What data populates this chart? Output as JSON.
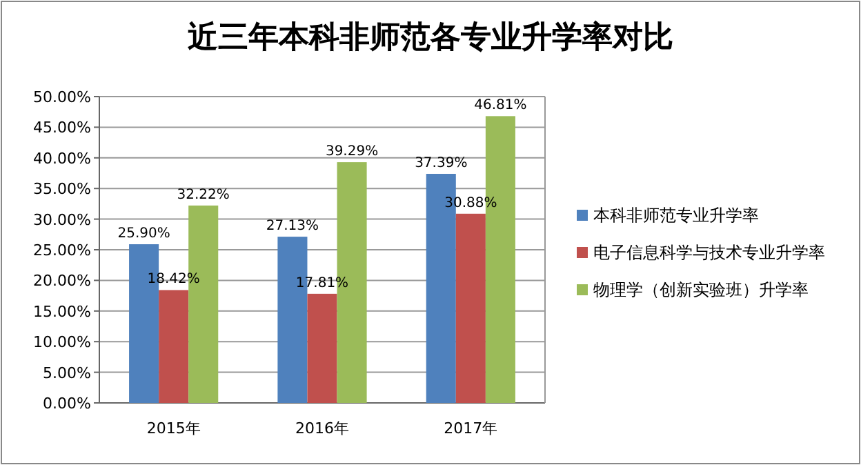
{
  "chart_data": {
    "type": "bar",
    "title": "近三年本科非师范各专业升学率对比",
    "categories": [
      "2015年",
      "2016年",
      "2017年"
    ],
    "series": [
      {
        "name": "本科非师范专业升学率",
        "color": "#4f81bd",
        "values": [
          25.9,
          27.13,
          37.39
        ],
        "value_labels": [
          "25.90%",
          "27.13%",
          "37.39%"
        ]
      },
      {
        "name": "电子信息科学与技术专业升学率",
        "color": "#c0504d",
        "values": [
          18.42,
          17.81,
          30.88
        ],
        "value_labels": [
          "18.42%",
          "17.81%",
          "30.88%"
        ]
      },
      {
        "name": "物理学（创新实验班）升学率",
        "color": "#9bbb59",
        "values": [
          32.22,
          39.29,
          46.81
        ],
        "value_labels": [
          "32.22%",
          "39.29%",
          "46.81%"
        ]
      }
    ],
    "ylim": [
      0,
      50
    ],
    "yticks": [
      {
        "value": 0,
        "label": "0.00%"
      },
      {
        "value": 5,
        "label": "5.00%"
      },
      {
        "value": 10,
        "label": "10.00%"
      },
      {
        "value": 15,
        "label": "15.00%"
      },
      {
        "value": 20,
        "label": "20.00%"
      },
      {
        "value": 25,
        "label": "25.00%"
      },
      {
        "value": 30,
        "label": "30.00%"
      },
      {
        "value": 35,
        "label": "35.00%"
      },
      {
        "value": 40,
        "label": "40.00%"
      },
      {
        "value": 45,
        "label": "45.00%"
      },
      {
        "value": 50,
        "label": "50.00%"
      }
    ],
    "grid": "y",
    "legend": "right"
  }
}
